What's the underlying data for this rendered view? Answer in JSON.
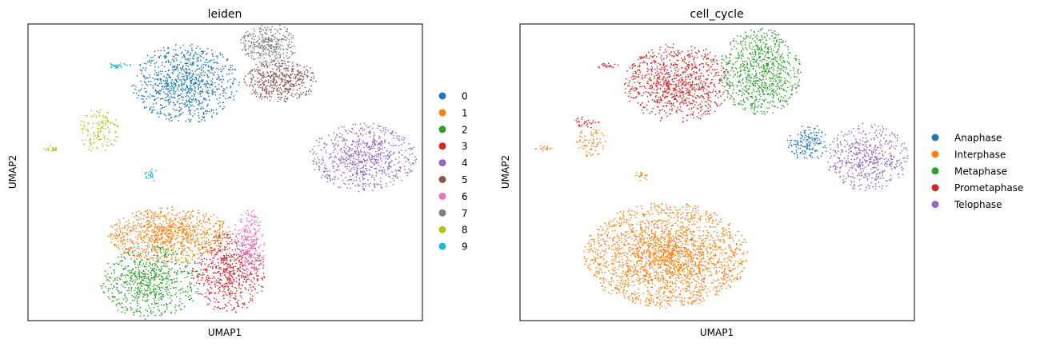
{
  "chart_data": [
    {
      "type": "scatter",
      "title": "leiden",
      "xlabel": "UMAP1",
      "ylabel": "UMAP2",
      "grid": false,
      "ticks": false,
      "legend_placement": "right",
      "legend": [
        {
          "label": "0",
          "color": "#1f77b4"
        },
        {
          "label": "1",
          "color": "#ff7f0e"
        },
        {
          "label": "2",
          "color": "#2ca02c"
        },
        {
          "label": "3",
          "color": "#d62728"
        },
        {
          "label": "4",
          "color": "#9467bd"
        },
        {
          "label": "5",
          "color": "#8c564b"
        },
        {
          "label": "6",
          "color": "#e377c2"
        },
        {
          "label": "7",
          "color": "#7f7f7f"
        },
        {
          "label": "8",
          "color": "#bcbd22"
        },
        {
          "label": "9",
          "color": "#17becf"
        }
      ],
      "clusters": [
        {
          "series": "0",
          "cx": 0.4,
          "cy": 0.8,
          "rx": 0.13,
          "ry": 0.13,
          "n": 900
        },
        {
          "series": "1",
          "cx": 0.36,
          "cy": 0.29,
          "rx": 0.15,
          "ry": 0.09,
          "n": 900
        },
        {
          "series": "2",
          "cx": 0.31,
          "cy": 0.13,
          "rx": 0.12,
          "ry": 0.12,
          "n": 700
        },
        {
          "series": "3",
          "cx": 0.51,
          "cy": 0.16,
          "rx": 0.09,
          "ry": 0.13,
          "n": 600
        },
        {
          "series": "4",
          "cx": 0.85,
          "cy": 0.55,
          "rx": 0.13,
          "ry": 0.11,
          "n": 700
        },
        {
          "series": "5",
          "cx": 0.64,
          "cy": 0.81,
          "rx": 0.09,
          "ry": 0.07,
          "n": 450
        },
        {
          "series": "6",
          "cx": 0.56,
          "cy": 0.26,
          "rx": 0.04,
          "ry": 0.11,
          "n": 260
        },
        {
          "series": "7",
          "cx": 0.61,
          "cy": 0.93,
          "rx": 0.07,
          "ry": 0.07,
          "n": 350
        },
        {
          "series": "8",
          "cx": 0.18,
          "cy": 0.64,
          "rx": 0.05,
          "ry": 0.07,
          "n": 140
        },
        {
          "series": "8",
          "cx": 0.06,
          "cy": 0.58,
          "rx": 0.02,
          "ry": 0.01,
          "n": 20
        },
        {
          "series": "9",
          "cx": 0.23,
          "cy": 0.86,
          "rx": 0.03,
          "ry": 0.01,
          "n": 30
        },
        {
          "series": "9",
          "cx": 0.31,
          "cy": 0.49,
          "rx": 0.02,
          "ry": 0.02,
          "n": 25
        }
      ]
    },
    {
      "type": "scatter",
      "title": "cell_cycle",
      "xlabel": "UMAP1",
      "ylabel": "UMAP2",
      "grid": false,
      "ticks": false,
      "legend_placement": "right",
      "legend": [
        {
          "label": "Anaphase",
          "color": "#1f77b4"
        },
        {
          "label": "Interphase",
          "color": "#ff7f0e"
        },
        {
          "label": "Metaphase",
          "color": "#2ca02c"
        },
        {
          "label": "Prometaphase",
          "color": "#d62728"
        },
        {
          "label": "Telophase",
          "color": "#9467bd"
        }
      ],
      "clusters": [
        {
          "series": "Prometaphase",
          "cx": 0.4,
          "cy": 0.8,
          "rx": 0.13,
          "ry": 0.13,
          "n": 900
        },
        {
          "series": "Prometaphase",
          "cx": 0.22,
          "cy": 0.86,
          "rx": 0.03,
          "ry": 0.01,
          "n": 20
        },
        {
          "series": "Prometaphase",
          "cx": 0.17,
          "cy": 0.67,
          "rx": 0.03,
          "ry": 0.02,
          "n": 30
        },
        {
          "series": "Metaphase",
          "cx": 0.61,
          "cy": 0.84,
          "rx": 0.1,
          "ry": 0.14,
          "n": 800
        },
        {
          "series": "Anaphase",
          "cx": 0.73,
          "cy": 0.6,
          "rx": 0.05,
          "ry": 0.06,
          "n": 160
        },
        {
          "series": "Telophase",
          "cx": 0.88,
          "cy": 0.55,
          "rx": 0.1,
          "ry": 0.11,
          "n": 500
        },
        {
          "series": "Interphase",
          "cx": 0.37,
          "cy": 0.22,
          "rx": 0.2,
          "ry": 0.17,
          "n": 2200
        },
        {
          "series": "Interphase",
          "cx": 0.18,
          "cy": 0.6,
          "rx": 0.04,
          "ry": 0.05,
          "n": 70
        },
        {
          "series": "Interphase",
          "cx": 0.06,
          "cy": 0.58,
          "rx": 0.02,
          "ry": 0.01,
          "n": 15
        },
        {
          "series": "Interphase",
          "cx": 0.31,
          "cy": 0.49,
          "rx": 0.02,
          "ry": 0.02,
          "n": 20
        }
      ]
    }
  ]
}
